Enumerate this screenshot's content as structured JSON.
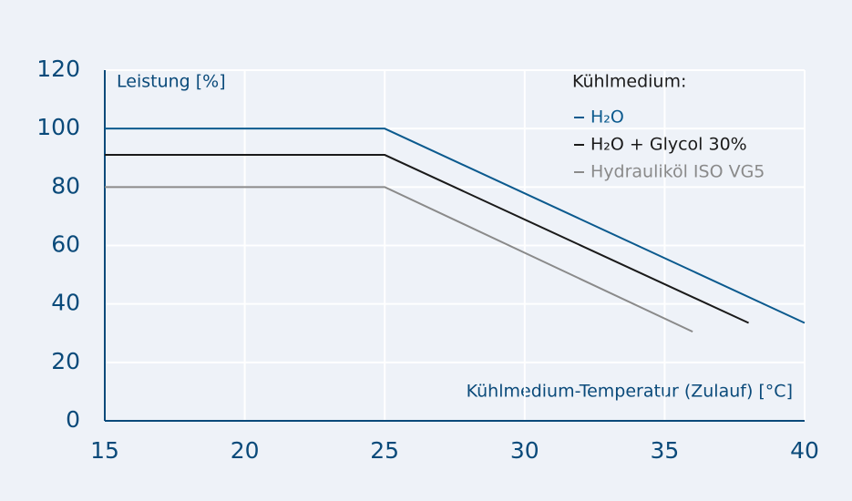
{
  "chart_data": {
    "type": "line",
    "x_label": "Kühlmedium-Temperatur (Zulauf) [°C]",
    "y_label": "Leistung [%]",
    "legend_title": "Kühlmedium:",
    "legend_position": "upper right",
    "grid": true,
    "xlim": [
      15,
      40
    ],
    "xticks": [
      15,
      20,
      25,
      30,
      35,
      40
    ],
    "ylim": [
      0,
      120
    ],
    "yticks": [
      0,
      20,
      40,
      60,
      80,
      100,
      120
    ],
    "series": [
      {
        "name": "H₂O",
        "color": "#0b5a8e",
        "x": [
          15,
          25,
          40
        ],
        "values": [
          100,
          100,
          33.5
        ]
      },
      {
        "name": "H₂O + Glycol 30%",
        "color": "#1a1a1a",
        "x": [
          15,
          25,
          38
        ],
        "values": [
          91,
          91,
          33.5
        ]
      },
      {
        "name": "Hydrauliköl ISO VG5",
        "color": "#8a8a8a",
        "x": [
          15,
          25,
          36
        ],
        "values": [
          80,
          80,
          30.5
        ]
      }
    ]
  }
}
